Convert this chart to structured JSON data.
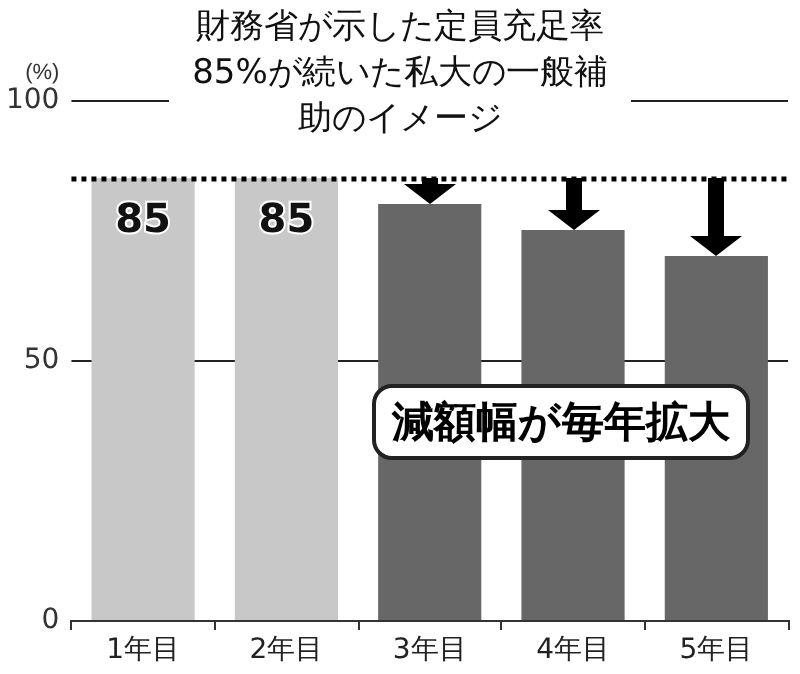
{
  "chart_data": {
    "type": "bar",
    "title": "財務省が示した定員充足率85%が続いた私大の一般補助のイメージ",
    "ylabel": "(%)",
    "categories": [
      "1年目",
      "2年目",
      "3年目",
      "4年目",
      "5年目"
    ],
    "values": [
      85,
      85,
      80,
      75,
      70
    ],
    "colors": [
      "#c8c8c8",
      "#c8c8c8",
      "#676767",
      "#676767",
      "#676767"
    ],
    "value_labels": [
      "85",
      "85",
      null,
      null,
      null
    ],
    "ylim": [
      0,
      100
    ],
    "yticks": [
      0,
      50,
      100
    ],
    "grid": "y",
    "ref_lines": [
      {
        "axis": "y",
        "value": 85,
        "line_style": "dotted",
        "color": "#000000"
      }
    ],
    "annotations": [
      "減額幅が毎年拡大"
    ]
  }
}
